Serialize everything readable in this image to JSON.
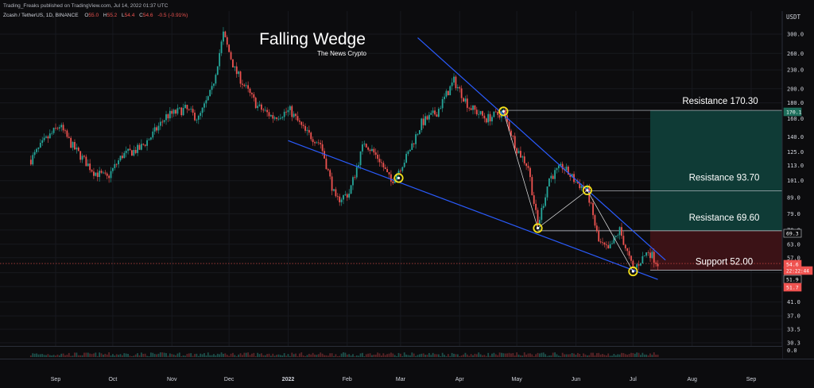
{
  "header": {
    "published": "Trading_Freaks published on TradingView.com, Jul 14, 2022 01:37 UTC",
    "symbol": "Zcash / TetherUS, 1D, BINANCE",
    "ohlc": [
      {
        "k": "O",
        "v": "55.0"
      },
      {
        "k": "H",
        "v": "55.2"
      },
      {
        "k": "L",
        "v": "54.4"
      },
      {
        "k": "C",
        "v": "54.6"
      }
    ],
    "change": "-0.5 (-0.91%)"
  },
  "colors": {
    "up": "#26a69a",
    "down": "#ef5350",
    "wedge": "#2a5cff",
    "marker": "#f4e11b",
    "green_zone": "#0f3b36",
    "red_zone": "#3b1216"
  },
  "chart_data": {
    "type": "candlestick",
    "title": "Falling Wedge",
    "subtitle": "The News Crypto",
    "currency": "USDT",
    "y_scale": "log",
    "y_ticks": [
      "300.0",
      "260.0",
      "230.0",
      "200.0",
      "180.0",
      "160.0",
      "140.0",
      "125.0",
      "113.0",
      "101.0",
      "89.0",
      "79.0",
      "70.0",
      "63.0",
      "57.0",
      "51.0",
      "46.0",
      "41.0",
      "37.0",
      "33.5",
      "30.3"
    ],
    "x_ticks": [
      "Sep",
      "Oct",
      "Nov",
      "Dec",
      "2022",
      "Feb",
      "Mar",
      "Apr",
      "May",
      "Jun",
      "Jul",
      "Aug",
      "Sep"
    ],
    "levels": [
      {
        "label": "Resistance 170.30",
        "value": 170.3,
        "tag": "170.3"
      },
      {
        "label": "Resistance 93.70",
        "value": 93.7,
        "tag": "93.7"
      },
      {
        "label": "Resistance 69.60",
        "value": 69.6,
        "tag": "69.6"
      },
      {
        "label": "Support 52.00",
        "value": 52.0,
        "tag": ""
      }
    ],
    "price_tags": [
      {
        "text": "170.1",
        "value": 170.1,
        "style": "green"
      },
      {
        "text": "69.3",
        "value": 69.3,
        "style": "plain"
      },
      {
        "text": "54.6",
        "value": 54.6,
        "style": "red"
      },
      {
        "text": "22:22:44",
        "value": 53.6,
        "style": "red-small"
      },
      {
        "text": "51.9",
        "value": 51.9,
        "style": "plain"
      },
      {
        "text": "51.7",
        "value": 51.7,
        "style": "red"
      }
    ],
    "last_price": 54.6,
    "pivots": [
      {
        "date": "2022-02-28",
        "price": 103
      },
      {
        "date": "2022-04-24",
        "price": 169
      },
      {
        "date": "2022-05-12",
        "price": 71
      },
      {
        "date": "2022-06-07",
        "price": 94
      },
      {
        "date": "2022-07-01",
        "price": 51.5
      }
    ],
    "wedge_upper": [
      {
        "date": "2022-03-10",
        "price": 292
      },
      {
        "date": "2022-07-18",
        "price": 56
      }
    ],
    "wedge_lower": [
      {
        "date": "2022-01-01",
        "price": 136
      },
      {
        "date": "2022-07-14",
        "price": 48.5
      }
    ],
    "trade_box": {
      "start": "2022-07-10",
      "end": "2022-09-30",
      "entry": 52.0,
      "target": 170.3,
      "stop": 69.6
    },
    "price_path": [
      [
        "2021-08-19",
        118
      ],
      [
        "2021-08-26",
        135
      ],
      [
        "2021-09-03",
        152
      ],
      [
        "2021-09-10",
        130
      ],
      [
        "2021-09-21",
        108
      ],
      [
        "2021-09-28",
        103
      ],
      [
        "2021-10-06",
        122
      ],
      [
        "2021-10-15",
        128
      ],
      [
        "2021-10-21",
        140
      ],
      [
        "2021-10-29",
        163
      ],
      [
        "2021-11-08",
        172
      ],
      [
        "2021-11-15",
        160
      ],
      [
        "2021-11-22",
        198
      ],
      [
        "2021-11-28",
        300
      ],
      [
        "2021-12-04",
        230
      ],
      [
        "2021-12-10",
        200
      ],
      [
        "2021-12-16",
        175
      ],
      [
        "2021-12-24",
        162
      ],
      [
        "2022-01-02",
        170
      ],
      [
        "2022-01-10",
        145
      ],
      [
        "2022-01-18",
        133
      ],
      [
        "2022-01-22",
        108
      ],
      [
        "2022-01-26",
        87
      ],
      [
        "2022-02-02",
        92
      ],
      [
        "2022-02-10",
        135
      ],
      [
        "2022-02-18",
        118
      ],
      [
        "2022-02-24",
        100
      ],
      [
        "2022-03-04",
        120
      ],
      [
        "2022-03-12",
        155
      ],
      [
        "2022-03-20",
        168
      ],
      [
        "2022-03-29",
        212
      ],
      [
        "2022-04-06",
        175
      ],
      [
        "2022-04-15",
        160
      ],
      [
        "2022-04-24",
        168
      ],
      [
        "2022-05-01",
        128
      ],
      [
        "2022-05-07",
        112
      ],
      [
        "2022-05-12",
        72
      ],
      [
        "2022-05-18",
        103
      ],
      [
        "2022-05-25",
        112
      ],
      [
        "2022-06-01",
        100
      ],
      [
        "2022-06-07",
        94
      ],
      [
        "2022-06-13",
        64
      ],
      [
        "2022-06-18",
        60
      ],
      [
        "2022-06-24",
        70
      ],
      [
        "2022-07-01",
        52
      ],
      [
        "2022-07-09",
        60
      ],
      [
        "2022-07-14",
        54.6
      ]
    ]
  }
}
